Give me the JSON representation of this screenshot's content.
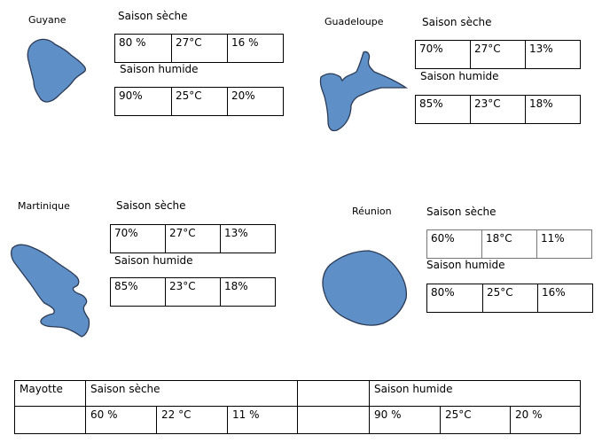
{
  "territories": [
    {
      "id": "guyane",
      "name": "Guyane",
      "dry_label": "Saison sèche",
      "dry": [
        "80 %",
        "27°C",
        "16 %"
      ],
      "wet_label": "Saison humide",
      "wet": [
        "90%",
        "25°C",
        "20%"
      ]
    },
    {
      "id": "guadeloupe",
      "name": "Guadeloupe",
      "dry_label": "Saison sèche",
      "dry": [
        "70%",
        "27°C",
        "13%"
      ],
      "wet_label": "Saison humide",
      "wet": [
        "85%",
        "23°C",
        "18%"
      ]
    },
    {
      "id": "martinique",
      "name": "Martinique",
      "dry_label": "Saison sèche",
      "dry": [
        "70%",
        "27°C",
        "13%"
      ],
      "wet_label": "Saison humide",
      "wet": [
        "85%",
        "23°C",
        "18%"
      ]
    },
    {
      "id": "reunion",
      "name": "Réunion",
      "dry_label": "Saison sèche",
      "dry": [
        "60%",
        "18°C",
        "11%"
      ],
      "wet_label": "Saison humide",
      "wet": [
        "80%",
        "25°C",
        "16%"
      ]
    }
  ],
  "mayotte": {
    "name": "Mayotte",
    "dry_label": "Saison sèche",
    "dry": [
      "60 %",
      "22 °C",
      "11 %"
    ],
    "wet_label": "Saison humide",
    "wet": [
      "90 %",
      "25°C",
      "20 %"
    ]
  },
  "colors": {
    "island_fill": "#5f8fc7",
    "island_outline": "#2b3a55"
  }
}
